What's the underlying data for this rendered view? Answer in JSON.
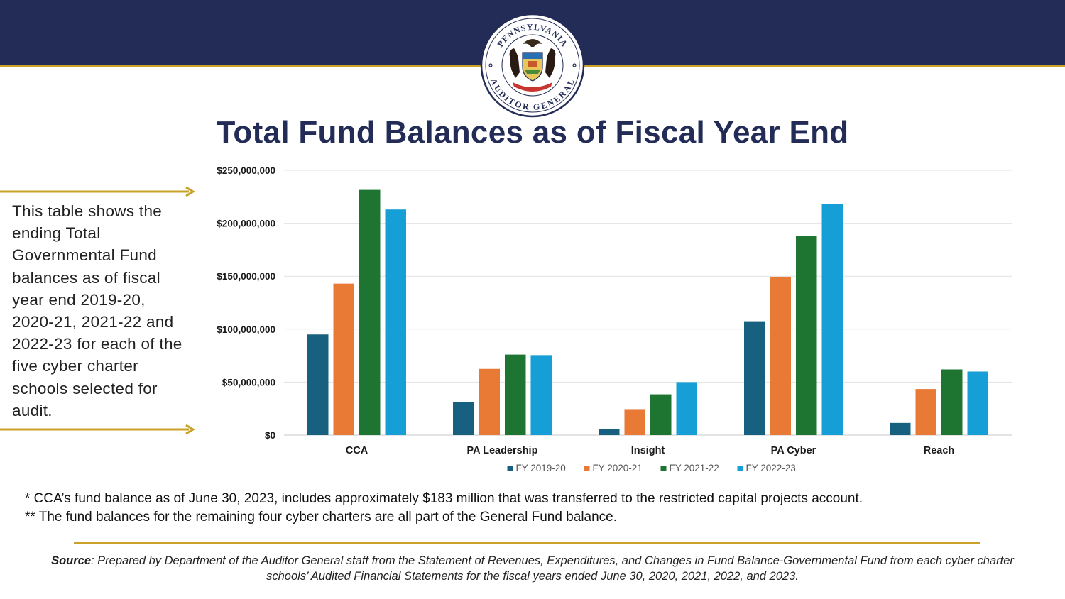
{
  "header": {
    "seal_top_text": "PENNSYLVANIA",
    "seal_bottom_text": "AUDITOR GENERAL",
    "title": "Total Fund Balances as of Fiscal Year End"
  },
  "side_note": "This table shows the ending Total Governmental Fund balances as of fiscal year end 2019-20, 2020-21, 2021-22 and 2022-23 for each of the five cyber charter schools selected for audit.",
  "colors": {
    "navy": "#222c57",
    "gold": "#c9a227",
    "series": [
      "#17607f",
      "#e97a36",
      "#1d7531",
      "#159fd6"
    ]
  },
  "chart_data": {
    "type": "bar",
    "title": "Total Fund Balances as of Fiscal Year End",
    "xlabel": "",
    "ylabel": "",
    "categories": [
      "CCA",
      "PA Leadership",
      "Insight",
      "PA Cyber",
      "Reach"
    ],
    "series": [
      {
        "name": "FY 2019-20",
        "values": [
          95000000,
          31500000,
          6000000,
          107500000,
          11500000
        ]
      },
      {
        "name": "FY 2020-21",
        "values": [
          143000000,
          62500000,
          24500000,
          149500000,
          43500000
        ]
      },
      {
        "name": "FY 2021-22",
        "values": [
          231500000,
          76000000,
          38500000,
          188000000,
          62000000
        ]
      },
      {
        "name": "FY 2022-23",
        "values": [
          213000000,
          75500000,
          50000000,
          218500000,
          60000000
        ]
      }
    ],
    "ylim": [
      0,
      250000000
    ],
    "yticks": [
      0,
      50000000,
      100000000,
      150000000,
      200000000,
      250000000
    ],
    "ytick_labels": [
      "$0",
      "$50,000,000",
      "$100,000,000",
      "$150,000,000",
      "$200,000,000",
      "$250,000,000"
    ],
    "grid": true,
    "legend": "bottom-center"
  },
  "notes": {
    "line1": "* CCA’s fund balance as of June 30, 2023, includes approximately $183 million that was transferred to the restricted capital projects account.",
    "line2": "** The fund balances for the remaining four cyber charters are all part of the General Fund balance."
  },
  "source": {
    "label": "Source",
    "text": ": Prepared by Department of the Auditor General staff from the Statement of Revenues, Expenditures, and Changes in Fund Balance-Governmental Fund from each cyber charter schools’ Audited Financial Statements for the fiscal years ended June 30, 2020, 2021, 2022, and 2023."
  }
}
